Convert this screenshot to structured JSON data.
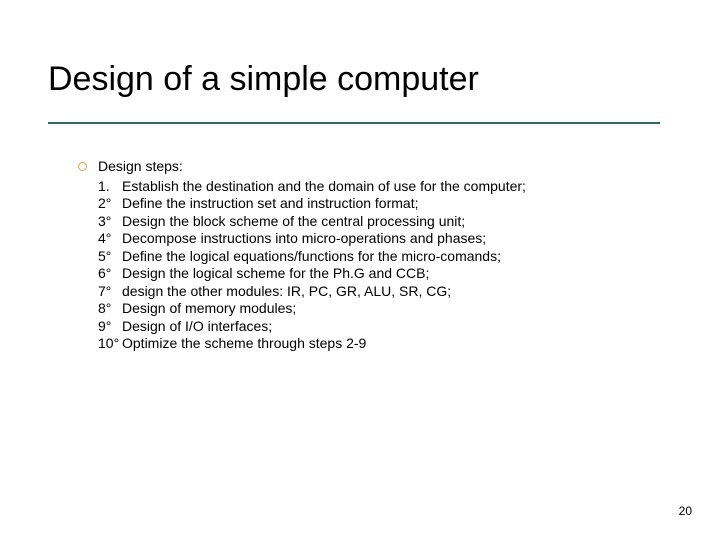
{
  "title": "Design of a simple computer",
  "steps_header": "Design steps:",
  "steps": [
    {
      "num": "1.",
      "text": "Establish the destination and the domain of use for the computer;"
    },
    {
      "num": "2°",
      "text": "Define the instruction set and instruction format;"
    },
    {
      "num": "3°",
      "text": "Design the block scheme of the central processing unit;"
    },
    {
      "num": "4°",
      "text": "Decompose instructions into micro-operations and phases;"
    },
    {
      "num": "5°",
      "text": "Define the logical equations/functions for the micro-comands;"
    },
    {
      "num": "6°",
      "text": "Design the logical scheme for the Ph.G and CCB;"
    },
    {
      "num": "7°",
      "text": "design the other modules: IR, PC, GR, ALU, SR, CG;"
    },
    {
      "num": "8°",
      "text": "Design of memory modules;"
    },
    {
      "num": "9°",
      "text": "Design of I/O interfaces;"
    },
    {
      "num": "10°",
      "text": "Optimize the scheme through steps 2-9"
    }
  ],
  "page_number": "20",
  "colors": {
    "rule": "#34675e",
    "bullet_border": "#d2a24c",
    "text": "#000000",
    "background": "#ffffff"
  },
  "fonts": {
    "title_size_pt": 26,
    "body_size_pt": 11,
    "pagenum_size_pt": 9,
    "family": "Verdana"
  }
}
